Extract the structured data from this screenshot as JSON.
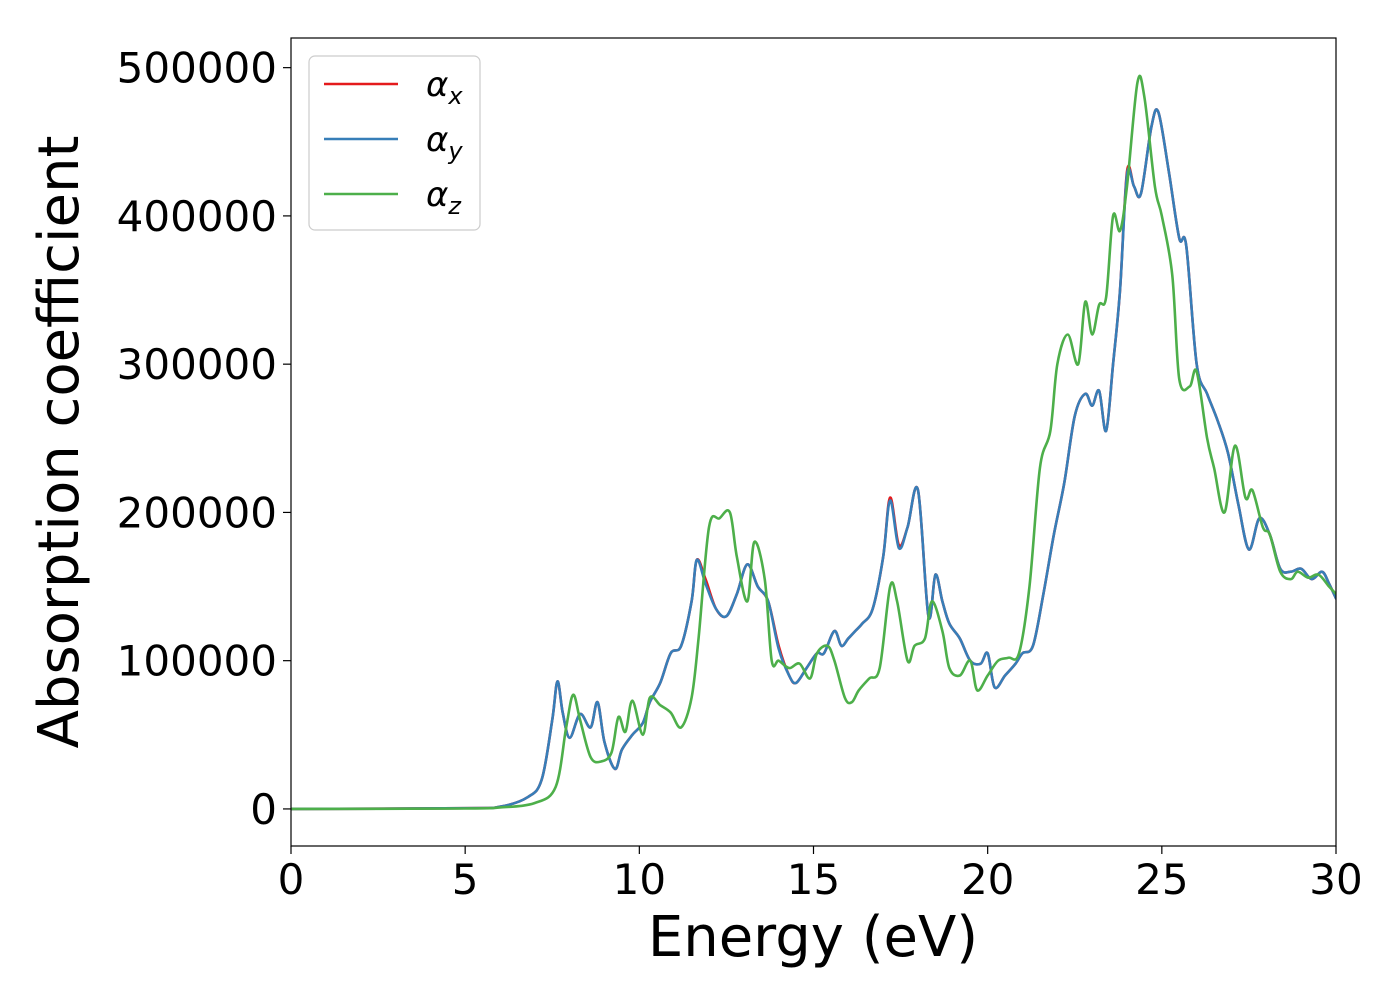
{
  "chart_data": {
    "type": "line",
    "title": "",
    "xlabel": "Energy (eV)",
    "ylabel": "Absorption coefficient",
    "xlim": [
      0,
      30
    ],
    "ylim": [
      -25000,
      520000
    ],
    "xticks": [
      0,
      5,
      10,
      15,
      20,
      25,
      30
    ],
    "xtick_labels": [
      "0",
      "5",
      "10",
      "15",
      "20",
      "25",
      "30"
    ],
    "yticks": [
      0,
      100000,
      200000,
      300000,
      400000,
      500000
    ],
    "ytick_labels": [
      "0",
      "100000",
      "200000",
      "300000",
      "400000",
      "500000"
    ],
    "grid": false,
    "legend_position": "upper-left",
    "series": [
      {
        "name": "αx",
        "color": "#e41a1c",
        "x": [
          0,
          5,
          6,
          6.8,
          7.2,
          7.5,
          7.65,
          7.8,
          8.0,
          8.3,
          8.6,
          8.8,
          9.0,
          9.3,
          9.5,
          9.8,
          10.1,
          10.3,
          10.6,
          10.9,
          11.2,
          11.5,
          11.65,
          11.9,
          12.2,
          12.5,
          12.8,
          13.1,
          13.4,
          13.7,
          14.0,
          14.3,
          14.5,
          14.8,
          15.1,
          15.3,
          15.6,
          15.8,
          16.0,
          16.2,
          16.4,
          16.7,
          17.0,
          17.2,
          17.45,
          17.7,
          18.0,
          18.3,
          18.5,
          18.7,
          18.9,
          19.2,
          19.5,
          19.8,
          20.0,
          20.2,
          20.5,
          20.8,
          21.0,
          21.3,
          21.6,
          21.9,
          22.2,
          22.5,
          22.8,
          23.0,
          23.2,
          23.4,
          23.6,
          23.8,
          24.0,
          24.2,
          24.4,
          24.7,
          24.9,
          25.2,
          25.5,
          25.7,
          26.0,
          26.3,
          26.6,
          26.9,
          27.2,
          27.5,
          27.8,
          28.1,
          28.4,
          28.7,
          29.0,
          29.3,
          29.6,
          29.8,
          30.0
        ],
        "y": [
          0,
          500,
          1500,
          8000,
          20000,
          60000,
          86000,
          65000,
          48000,
          64000,
          55000,
          72000,
          45000,
          27000,
          40000,
          50000,
          58000,
          72000,
          85000,
          105000,
          110000,
          140000,
          168000,
          155000,
          135000,
          130000,
          145000,
          165000,
          150000,
          140000,
          110000,
          90000,
          85000,
          95000,
          105000,
          105000,
          120000,
          110000,
          115000,
          120000,
          125000,
          135000,
          170000,
          210000,
          178000,
          190000,
          215000,
          130000,
          158000,
          140000,
          125000,
          115000,
          100000,
          98000,
          105000,
          82000,
          90000,
          98000,
          105000,
          110000,
          145000,
          185000,
          220000,
          265000,
          280000,
          272000,
          282000,
          255000,
          300000,
          350000,
          430000,
          420000,
          415000,
          460000,
          470000,
          430000,
          385000,
          380000,
          300000,
          280000,
          262000,
          240000,
          205000,
          175000,
          196000,
          185000,
          162000,
          160000,
          162000,
          155000,
          160000,
          152000,
          142000
        ]
      },
      {
        "name": "αy",
        "color": "#377eb8",
        "x": [
          0,
          5,
          6,
          6.8,
          7.2,
          7.5,
          7.65,
          7.8,
          8.0,
          8.3,
          8.6,
          8.8,
          9.0,
          9.3,
          9.5,
          9.8,
          10.1,
          10.3,
          10.6,
          10.9,
          11.2,
          11.5,
          11.65,
          11.9,
          12.2,
          12.5,
          12.8,
          13.1,
          13.4,
          13.7,
          14.0,
          14.3,
          14.5,
          14.8,
          15.1,
          15.3,
          15.6,
          15.8,
          16.0,
          16.2,
          16.4,
          16.7,
          17.0,
          17.2,
          17.45,
          17.7,
          18.0,
          18.3,
          18.5,
          18.7,
          18.9,
          19.2,
          19.5,
          19.8,
          20.0,
          20.2,
          20.5,
          20.8,
          21.0,
          21.3,
          21.6,
          21.9,
          22.2,
          22.5,
          22.8,
          23.0,
          23.2,
          23.4,
          23.6,
          23.8,
          24.0,
          24.2,
          24.4,
          24.7,
          24.9,
          25.2,
          25.5,
          25.7,
          26.0,
          26.3,
          26.6,
          26.9,
          27.2,
          27.5,
          27.8,
          28.1,
          28.4,
          28.7,
          29.0,
          29.3,
          29.6,
          29.8,
          30.0
        ],
        "y": [
          0,
          500,
          1500,
          8000,
          20000,
          60000,
          86000,
          65000,
          48000,
          64000,
          55000,
          72000,
          45000,
          27000,
          40000,
          50000,
          58000,
          72000,
          85000,
          105000,
          110000,
          140000,
          168000,
          152000,
          135000,
          130000,
          145000,
          165000,
          150000,
          140000,
          108000,
          90000,
          85000,
          95000,
          105000,
          105000,
          120000,
          110000,
          115000,
          120000,
          125000,
          135000,
          170000,
          208000,
          176000,
          190000,
          215000,
          130000,
          158000,
          140000,
          125000,
          115000,
          100000,
          98000,
          105000,
          82000,
          90000,
          98000,
          105000,
          110000,
          145000,
          185000,
          220000,
          265000,
          280000,
          272000,
          282000,
          255000,
          300000,
          350000,
          428000,
          420000,
          415000,
          460000,
          470000,
          430000,
          385000,
          380000,
          300000,
          280000,
          262000,
          240000,
          205000,
          175000,
          196000,
          185000,
          162000,
          160000,
          162000,
          155000,
          160000,
          152000,
          142000
        ]
      },
      {
        "name": "αz",
        "color": "#4daf4a",
        "x": [
          0,
          5,
          6,
          7.0,
          7.6,
          7.9,
          8.1,
          8.3,
          8.6,
          8.9,
          9.2,
          9.4,
          9.6,
          9.8,
          10.1,
          10.3,
          10.6,
          10.9,
          11.2,
          11.5,
          11.7,
          12.0,
          12.3,
          12.6,
          12.8,
          13.1,
          13.3,
          13.6,
          13.8,
          14.0,
          14.3,
          14.6,
          14.9,
          15.1,
          15.4,
          15.6,
          15.9,
          16.1,
          16.3,
          16.6,
          16.9,
          17.2,
          17.4,
          17.7,
          17.9,
          18.2,
          18.4,
          18.7,
          18.9,
          19.2,
          19.5,
          19.7,
          20.0,
          20.3,
          20.6,
          20.9,
          21.2,
          21.5,
          21.8,
          22.0,
          22.3,
          22.6,
          22.8,
          23.0,
          23.2,
          23.4,
          23.6,
          23.8,
          24.0,
          24.3,
          24.5,
          24.8,
          25.0,
          25.3,
          25.5,
          25.8,
          26.0,
          26.3,
          26.5,
          26.8,
          27.1,
          27.4,
          27.6,
          27.9,
          28.1,
          28.4,
          28.7,
          28.9,
          29.2,
          29.5,
          29.8,
          30.0
        ],
        "y": [
          0,
          300,
          1000,
          4000,
          15000,
          55000,
          77000,
          60000,
          35000,
          32000,
          38000,
          62000,
          52000,
          73000,
          50000,
          75000,
          70000,
          65000,
          55000,
          75000,
          115000,
          190000,
          196000,
          200000,
          170000,
          140000,
          180000,
          155000,
          100000,
          100000,
          95000,
          98000,
          88000,
          105000,
          110000,
          100000,
          75000,
          72000,
          80000,
          88000,
          95000,
          150000,
          140000,
          100000,
          110000,
          115000,
          140000,
          120000,
          95000,
          90000,
          100000,
          80000,
          90000,
          100000,
          102000,
          105000,
          150000,
          230000,
          255000,
          300000,
          320000,
          300000,
          342000,
          320000,
          340000,
          345000,
          400000,
          390000,
          420000,
          490000,
          480000,
          420000,
          400000,
          360000,
          290000,
          285000,
          295000,
          250000,
          230000,
          200000,
          245000,
          210000,
          215000,
          190000,
          185000,
          160000,
          155000,
          160000,
          156000,
          158000,
          150000,
          145000
        ]
      }
    ]
  }
}
